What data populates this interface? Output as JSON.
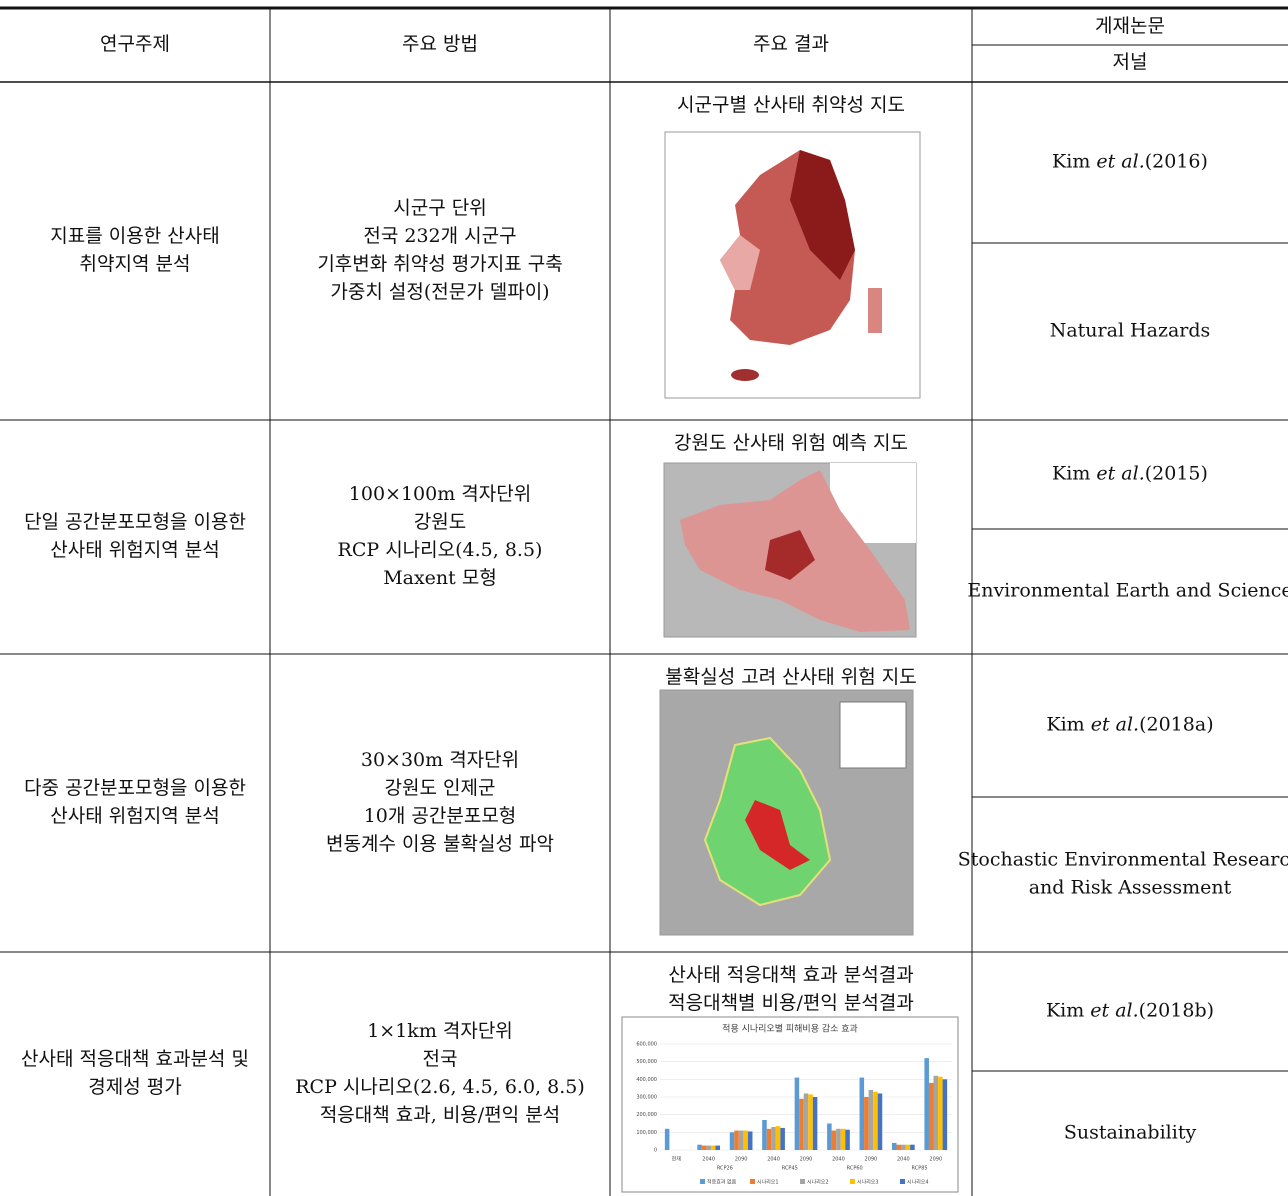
{
  "header": {
    "topic": "연구주제",
    "method": "주요 방법",
    "result": "주요 결과",
    "paper": "게재논문",
    "journal": "저널"
  },
  "rows": [
    {
      "topic": [
        "지표를 이용한 산사태",
        "취약지역 분석"
      ],
      "method": [
        "시군구 단위",
        "전국 232개 시군구",
        "기후변화 취약성 평가지표 구축",
        "가중치 설정(전문가 델파이)"
      ],
      "result_title": [
        "시군구별 산사태 취약성 지도"
      ],
      "author": "Kim",
      "etal": "et al.",
      "year": "(2016)",
      "journal": [
        "Natural Hazards"
      ]
    },
    {
      "topic": [
        "단일 공간분포모형을 이용한",
        "산사태 위험지역 분석"
      ],
      "method": [
        "100×100m 격자단위",
        "강원도",
        "RCP 시나리오(4.5, 8.5)",
        "Maxent 모형"
      ],
      "result_title": [
        "강원도 산사태 위험 예측 지도"
      ],
      "author": "Kim",
      "etal": "et al.",
      "year": "(2015)",
      "journal": [
        "Environmental Earth and Science"
      ]
    },
    {
      "topic": [
        "다중 공간분포모형을 이용한",
        "산사태 위험지역 분석"
      ],
      "method": [
        "30×30m 격자단위",
        "강원도 인제군",
        "10개 공간분포모형",
        "변동계수 이용 불확실성 파악"
      ],
      "result_title": [
        "불확실성 고려 산사태 위험 지도"
      ],
      "author": "Kim",
      "etal": "et al.",
      "year": "(2018a)",
      "journal": [
        "Stochastic Environmental Research",
        "and Risk Assessment"
      ]
    },
    {
      "topic": [
        "산사태 적응대책 효과분석 및",
        "경제성 평가"
      ],
      "method": [
        "1×1km 격자단위",
        "전국",
        "RCP 시나리오(2.6, 4.5, 6.0, 8.5)",
        "적응대책 효과, 비용/편익 분석"
      ],
      "result_title": [
        "산사태 적응대책 효과 분석결과",
        "적응대책별 비용/편익 분석결과"
      ],
      "author": "Kim",
      "etal": "et al.",
      "year": "(2018b)",
      "journal": [
        "Sustainability"
      ]
    }
  ],
  "chart_data": {
    "type": "bar",
    "title": "적용 시나리오별 피해비용 감소 효과",
    "categories": [
      "현재",
      "2040",
      "2090",
      "2040",
      "2090",
      "2040",
      "2090",
      "2040",
      "2090"
    ],
    "groups": [
      "RCP26",
      "RCP45",
      "RCP60",
      "RCP85"
    ],
    "ylim": [
      0,
      600000
    ],
    "yticks": [
      0,
      {
        "value": 100000,
        "label": "100,000"
      },
      {
        "value": 200000,
        "label": "200,000"
      },
      {
        "value": 300000,
        "label": "300,000"
      },
      {
        "value": 400000,
        "label": "400,000"
      },
      {
        "value": 500000,
        "label": "500,000"
      },
      {
        "value": 600000,
        "label": "600,000"
      }
    ],
    "series": [
      {
        "name": "적응효과 없음",
        "color": "#5b9bd5",
        "values": [
          120000,
          30000,
          100000,
          170000,
          410000,
          150000,
          410000,
          40000,
          520000
        ]
      },
      {
        "name": "시나리오1",
        "color": "#ed7d31",
        "values": [
          null,
          25000,
          110000,
          120000,
          290000,
          110000,
          300000,
          30000,
          380000
        ]
      },
      {
        "name": "시나리오2",
        "color": "#a5a5a5",
        "values": [
          null,
          25000,
          110000,
          130000,
          320000,
          120000,
          340000,
          30000,
          420000
        ]
      },
      {
        "name": "시나리오3",
        "color": "#ffc000",
        "values": [
          null,
          25000,
          110000,
          135000,
          315000,
          120000,
          330000,
          30000,
          415000
        ]
      },
      {
        "name": "시나리오4",
        "color": "#4472c4",
        "values": [
          null,
          25000,
          105000,
          125000,
          300000,
          115000,
          320000,
          30000,
          400000
        ]
      }
    ]
  }
}
